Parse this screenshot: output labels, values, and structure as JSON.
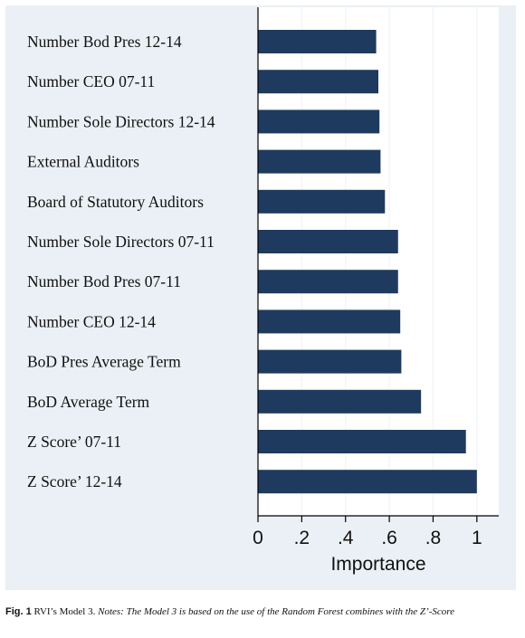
{
  "chart_data": {
    "type": "bar",
    "orientation": "horizontal",
    "categories": [
      "Number Bod Pres 12-14",
      "Number CEO 07-11",
      "Number Sole Directors 12-14",
      "External Auditors",
      "Board of Statutory Auditors",
      "Number Sole Directors 07-11",
      "Number Bod Pres 07-11",
      "Number CEO 12-14",
      "BoD Pres Average Term",
      "BoD Average Term",
      "Z Score’ 07-11",
      "Z Score’ 12-14"
    ],
    "values": [
      0.54,
      0.55,
      0.555,
      0.56,
      0.58,
      0.64,
      0.64,
      0.65,
      0.655,
      0.745,
      0.95,
      1.0
    ],
    "xlabel": "Importance",
    "ylabel": "",
    "xlim": [
      0,
      1.1
    ],
    "xticks": [
      0,
      0.2,
      0.4,
      0.6,
      0.8,
      1
    ],
    "xtick_labels": [
      "0",
      ".2",
      ".4",
      ".6",
      ".8",
      "1"
    ],
    "grid": true,
    "bar_color": "#1f3a5f",
    "plot_background": "#ffffff",
    "outer_background": "#eaf0f5"
  },
  "caption": {
    "fig_label": "Fig. 1",
    "title": "RVI’s Model 3.",
    "notes": "Notes: The Model 3 is based on the use of the Random Forest combines with the Z’-Score"
  }
}
